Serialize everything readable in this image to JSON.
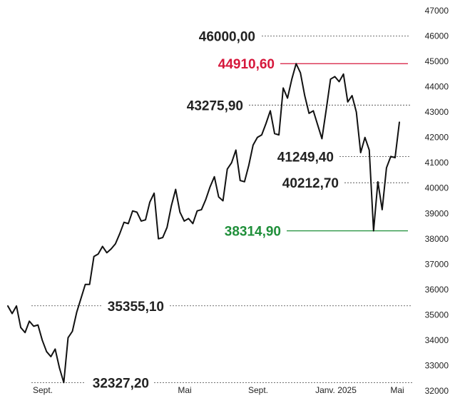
{
  "chart_data": {
    "type": "line",
    "title": "",
    "xlabel": "",
    "ylabel": "",
    "ylim": [
      32000,
      47000
    ],
    "y_ticks": [
      32000,
      33000,
      34000,
      35000,
      36000,
      37000,
      38000,
      39000,
      40000,
      41000,
      42000,
      43000,
      44000,
      45000,
      46000,
      47000
    ],
    "x_tick_labels": [
      "Sept.",
      "Mai",
      "Sept.",
      "Janv. 2025",
      "Mai"
    ],
    "grid": false,
    "colors": {
      "line": "#111111",
      "high": "#d6173b",
      "low": "#1f8f3a",
      "ref": "#444444",
      "text": "#222222"
    },
    "annotations": [
      {
        "label": "46000,00",
        "value": 46000.0,
        "kind": "ref"
      },
      {
        "label": "44910,60",
        "value": 44910.6,
        "kind": "high"
      },
      {
        "label": "43275,90",
        "value": 43275.9,
        "kind": "ref"
      },
      {
        "label": "41249,40",
        "value": 41249.4,
        "kind": "ref"
      },
      {
        "label": "40212,70",
        "value": 40212.7,
        "kind": "ref"
      },
      {
        "label": "38314,90",
        "value": 38314.9,
        "kind": "low"
      },
      {
        "label": "35355,10",
        "value": 35355.1,
        "kind": "ref"
      },
      {
        "label": "32327,20",
        "value": 32327.2,
        "kind": "ref"
      }
    ],
    "series": [
      {
        "values": [
          35350,
          35050,
          35350,
          34500,
          34300,
          34750,
          34550,
          34600,
          34000,
          33550,
          33350,
          33650,
          32900,
          32327,
          34100,
          34350,
          35100,
          35650,
          36200,
          36200,
          37300,
          37400,
          37700,
          37450,
          37600,
          37800,
          38200,
          38650,
          38600,
          39100,
          39050,
          38700,
          38750,
          39450,
          39800,
          38000,
          38050,
          38450,
          39300,
          39950,
          39050,
          38700,
          38800,
          38600,
          39100,
          39150,
          39550,
          40050,
          40450,
          39650,
          39500,
          40750,
          41000,
          41500,
          40300,
          40250,
          40900,
          41700,
          42000,
          42100,
          42550,
          43050,
          42150,
          42100,
          43950,
          43550,
          44300,
          44910,
          44550,
          43650,
          42950,
          43050,
          42500,
          41950,
          43100,
          44300,
          44400,
          44200,
          44500,
          43400,
          43650,
          43000,
          41400,
          42000,
          41500,
          38315,
          40250,
          39150,
          40800,
          41249,
          41200,
          42600
        ]
      }
    ]
  }
}
